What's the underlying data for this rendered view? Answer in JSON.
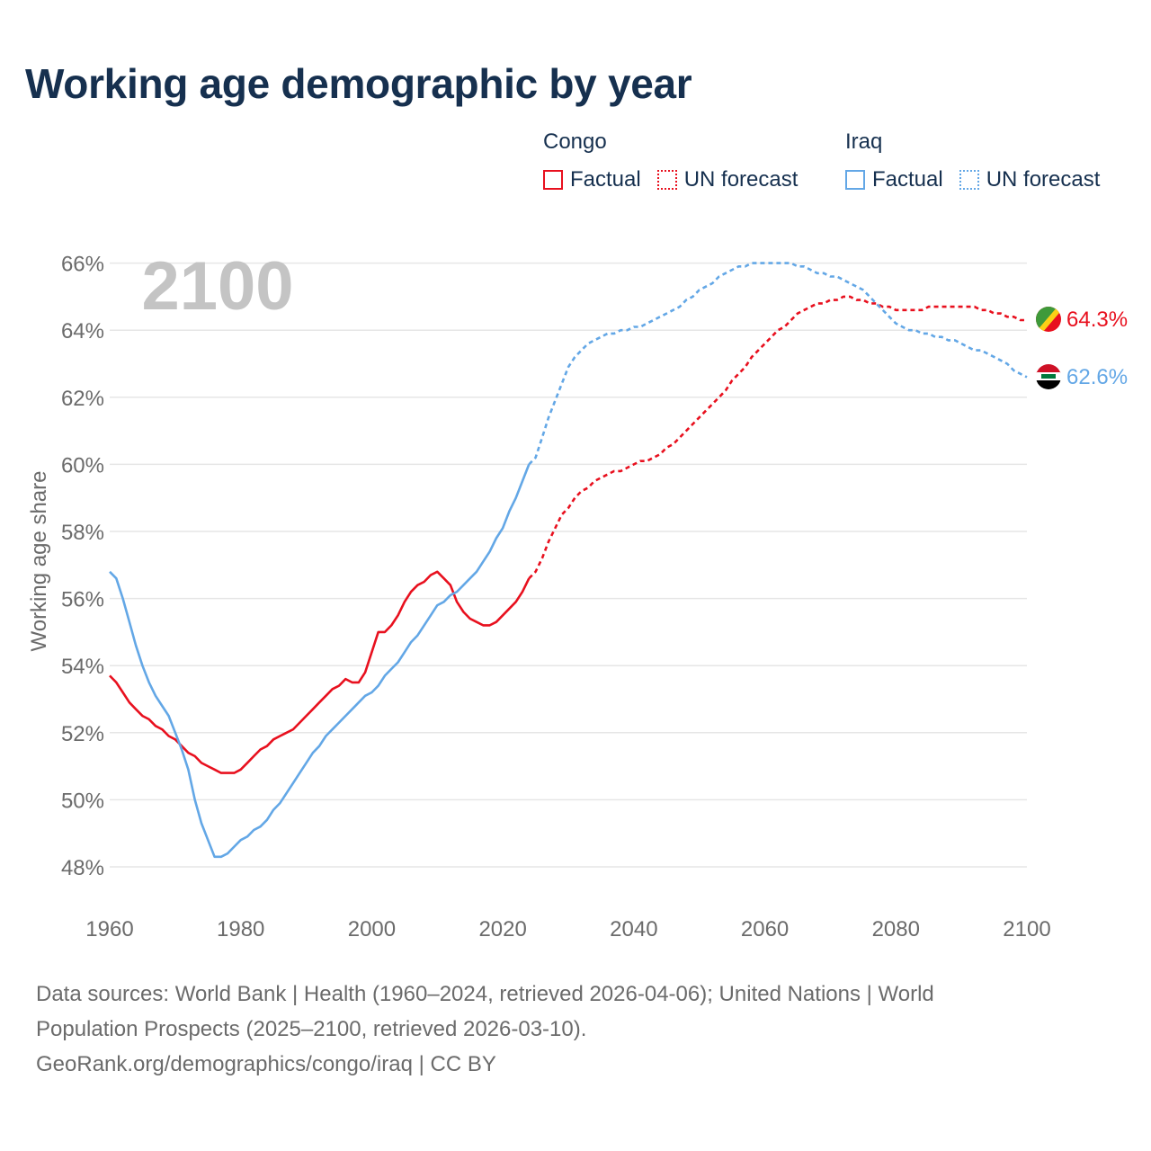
{
  "title": "Working age demographic by year",
  "legend": {
    "groups": [
      {
        "name": "Congo",
        "color": "#e8101e",
        "items": [
          {
            "label": "Factual",
            "style": "solid"
          },
          {
            "label": "UN forecast",
            "style": "dotted"
          }
        ]
      },
      {
        "name": "Iraq",
        "color": "#63a7e6",
        "items": [
          {
            "label": "Factual",
            "style": "solid"
          },
          {
            "label": "UN forecast",
            "style": "dotted"
          }
        ]
      }
    ]
  },
  "year_watermark": "2100",
  "end_labels": {
    "congo": "64.3%",
    "iraq": "62.6%"
  },
  "footer": {
    "line1": "Data sources: World Bank | Health (1960–2024, retrieved 2026-04-06); United Nations | World",
    "line2": "Population Prospects (2025–2100, retrieved 2026-03-10).",
    "line3": "GeoRank.org/demographics/congo/iraq | CC BY"
  },
  "chart_data": {
    "type": "line",
    "title": "Working age demographic by year",
    "xlabel": "",
    "ylabel": "Working age share",
    "xlim": [
      1960,
      2100
    ],
    "ylim": [
      47,
      67
    ],
    "x_ticks": [
      1960,
      1980,
      2000,
      2020,
      2040,
      2060,
      2080,
      2100
    ],
    "y_ticks": [
      48,
      50,
      52,
      54,
      56,
      58,
      60,
      62,
      64,
      66
    ],
    "y_tick_labels": [
      "48%",
      "50%",
      "52%",
      "54%",
      "56%",
      "58%",
      "60%",
      "62%",
      "64%",
      "66%"
    ],
    "x_tick_labels": [
      "1960",
      "1980",
      "2000",
      "2020",
      "2040",
      "2060",
      "2080",
      "2100"
    ],
    "grid": true,
    "factual_end_year": 2024,
    "series": [
      {
        "name": "Congo",
        "color": "#e8101e",
        "points": [
          [
            1960,
            53.7
          ],
          [
            1961,
            53.5
          ],
          [
            1962,
            53.2
          ],
          [
            1963,
            52.9
          ],
          [
            1964,
            52.7
          ],
          [
            1965,
            52.5
          ],
          [
            1966,
            52.4
          ],
          [
            1967,
            52.2
          ],
          [
            1968,
            52.1
          ],
          [
            1969,
            51.9
          ],
          [
            1970,
            51.8
          ],
          [
            1971,
            51.6
          ],
          [
            1972,
            51.4
          ],
          [
            1973,
            51.3
          ],
          [
            1974,
            51.1
          ],
          [
            1975,
            51.0
          ],
          [
            1976,
            50.9
          ],
          [
            1977,
            50.8
          ],
          [
            1978,
            50.8
          ],
          [
            1979,
            50.8
          ],
          [
            1980,
            50.9
          ],
          [
            1981,
            51.1
          ],
          [
            1982,
            51.3
          ],
          [
            1983,
            51.5
          ],
          [
            1984,
            51.6
          ],
          [
            1985,
            51.8
          ],
          [
            1986,
            51.9
          ],
          [
            1987,
            52.0
          ],
          [
            1988,
            52.1
          ],
          [
            1989,
            52.3
          ],
          [
            1990,
            52.5
          ],
          [
            1991,
            52.7
          ],
          [
            1992,
            52.9
          ],
          [
            1993,
            53.1
          ],
          [
            1994,
            53.3
          ],
          [
            1995,
            53.4
          ],
          [
            1996,
            53.6
          ],
          [
            1997,
            53.5
          ],
          [
            1998,
            53.5
          ],
          [
            1999,
            53.8
          ],
          [
            2000,
            54.4
          ],
          [
            2001,
            55.0
          ],
          [
            2002,
            55.0
          ],
          [
            2003,
            55.2
          ],
          [
            2004,
            55.5
          ],
          [
            2005,
            55.9
          ],
          [
            2006,
            56.2
          ],
          [
            2007,
            56.4
          ],
          [
            2008,
            56.5
          ],
          [
            2009,
            56.7
          ],
          [
            2010,
            56.8
          ],
          [
            2011,
            56.6
          ],
          [
            2012,
            56.4
          ],
          [
            2013,
            55.9
          ],
          [
            2014,
            55.6
          ],
          [
            2015,
            55.4
          ],
          [
            2016,
            55.3
          ],
          [
            2017,
            55.2
          ],
          [
            2018,
            55.2
          ],
          [
            2019,
            55.3
          ],
          [
            2020,
            55.5
          ],
          [
            2021,
            55.7
          ],
          [
            2022,
            55.9
          ],
          [
            2023,
            56.2
          ],
          [
            2024,
            56.6
          ],
          [
            2025,
            56.8
          ],
          [
            2026,
            57.2
          ],
          [
            2027,
            57.7
          ],
          [
            2028,
            58.1
          ],
          [
            2029,
            58.5
          ],
          [
            2030,
            58.7
          ],
          [
            2031,
            59.0
          ],
          [
            2032,
            59.2
          ],
          [
            2033,
            59.3
          ],
          [
            2034,
            59.5
          ],
          [
            2035,
            59.6
          ],
          [
            2036,
            59.7
          ],
          [
            2037,
            59.8
          ],
          [
            2038,
            59.8
          ],
          [
            2039,
            59.9
          ],
          [
            2040,
            60.0
          ],
          [
            2041,
            60.1
          ],
          [
            2042,
            60.1
          ],
          [
            2043,
            60.2
          ],
          [
            2044,
            60.3
          ],
          [
            2045,
            60.5
          ],
          [
            2046,
            60.6
          ],
          [
            2047,
            60.8
          ],
          [
            2048,
            61.0
          ],
          [
            2049,
            61.2
          ],
          [
            2050,
            61.4
          ],
          [
            2051,
            61.6
          ],
          [
            2052,
            61.8
          ],
          [
            2053,
            62.0
          ],
          [
            2054,
            62.2
          ],
          [
            2055,
            62.5
          ],
          [
            2056,
            62.7
          ],
          [
            2057,
            62.9
          ],
          [
            2058,
            63.2
          ],
          [
            2059,
            63.4
          ],
          [
            2060,
            63.6
          ],
          [
            2061,
            63.8
          ],
          [
            2062,
            64.0
          ],
          [
            2063,
            64.1
          ],
          [
            2064,
            64.3
          ],
          [
            2065,
            64.5
          ],
          [
            2066,
            64.6
          ],
          [
            2067,
            64.7
          ],
          [
            2068,
            64.8
          ],
          [
            2069,
            64.8
          ],
          [
            2070,
            64.9
          ],
          [
            2071,
            64.9
          ],
          [
            2072,
            65.0
          ],
          [
            2073,
            65.0
          ],
          [
            2074,
            64.9
          ],
          [
            2075,
            64.9
          ],
          [
            2076,
            64.8
          ],
          [
            2077,
            64.8
          ],
          [
            2078,
            64.7
          ],
          [
            2079,
            64.7
          ],
          [
            2080,
            64.6
          ],
          [
            2081,
            64.6
          ],
          [
            2082,
            64.6
          ],
          [
            2083,
            64.6
          ],
          [
            2084,
            64.6
          ],
          [
            2085,
            64.7
          ],
          [
            2086,
            64.7
          ],
          [
            2087,
            64.7
          ],
          [
            2088,
            64.7
          ],
          [
            2089,
            64.7
          ],
          [
            2090,
            64.7
          ],
          [
            2091,
            64.7
          ],
          [
            2092,
            64.7
          ],
          [
            2093,
            64.6
          ],
          [
            2094,
            64.6
          ],
          [
            2095,
            64.5
          ],
          [
            2096,
            64.5
          ],
          [
            2097,
            64.4
          ],
          [
            2098,
            64.4
          ],
          [
            2099,
            64.3
          ],
          [
            2100,
            64.3
          ]
        ]
      },
      {
        "name": "Iraq",
        "color": "#63a7e6",
        "points": [
          [
            1960,
            56.8
          ],
          [
            1961,
            56.6
          ],
          [
            1962,
            56.0
          ],
          [
            1963,
            55.3
          ],
          [
            1964,
            54.6
          ],
          [
            1965,
            54.0
          ],
          [
            1966,
            53.5
          ],
          [
            1967,
            53.1
          ],
          [
            1968,
            52.8
          ],
          [
            1969,
            52.5
          ],
          [
            1970,
            52.0
          ],
          [
            1971,
            51.5
          ],
          [
            1972,
            50.9
          ],
          [
            1973,
            50.0
          ],
          [
            1974,
            49.3
          ],
          [
            1975,
            48.8
          ],
          [
            1976,
            48.3
          ],
          [
            1977,
            48.3
          ],
          [
            1978,
            48.4
          ],
          [
            1979,
            48.6
          ],
          [
            1980,
            48.8
          ],
          [
            1981,
            48.9
          ],
          [
            1982,
            49.1
          ],
          [
            1983,
            49.2
          ],
          [
            1984,
            49.4
          ],
          [
            1985,
            49.7
          ],
          [
            1986,
            49.9
          ],
          [
            1987,
            50.2
          ],
          [
            1988,
            50.5
          ],
          [
            1989,
            50.8
          ],
          [
            1990,
            51.1
          ],
          [
            1991,
            51.4
          ],
          [
            1992,
            51.6
          ],
          [
            1993,
            51.9
          ],
          [
            1994,
            52.1
          ],
          [
            1995,
            52.3
          ],
          [
            1996,
            52.5
          ],
          [
            1997,
            52.7
          ],
          [
            1998,
            52.9
          ],
          [
            1999,
            53.1
          ],
          [
            2000,
            53.2
          ],
          [
            2001,
            53.4
          ],
          [
            2002,
            53.7
          ],
          [
            2003,
            53.9
          ],
          [
            2004,
            54.1
          ],
          [
            2005,
            54.4
          ],
          [
            2006,
            54.7
          ],
          [
            2007,
            54.9
          ],
          [
            2008,
            55.2
          ],
          [
            2009,
            55.5
          ],
          [
            2010,
            55.8
          ],
          [
            2011,
            55.9
          ],
          [
            2012,
            56.1
          ],
          [
            2013,
            56.2
          ],
          [
            2014,
            56.4
          ],
          [
            2015,
            56.6
          ],
          [
            2016,
            56.8
          ],
          [
            2017,
            57.1
          ],
          [
            2018,
            57.4
          ],
          [
            2019,
            57.8
          ],
          [
            2020,
            58.1
          ],
          [
            2021,
            58.6
          ],
          [
            2022,
            59.0
          ],
          [
            2023,
            59.5
          ],
          [
            2024,
            60.0
          ],
          [
            2025,
            60.2
          ],
          [
            2026,
            60.8
          ],
          [
            2027,
            61.4
          ],
          [
            2028,
            61.9
          ],
          [
            2029,
            62.4
          ],
          [
            2030,
            62.9
          ],
          [
            2031,
            63.2
          ],
          [
            2032,
            63.4
          ],
          [
            2033,
            63.6
          ],
          [
            2034,
            63.7
          ],
          [
            2035,
            63.8
          ],
          [
            2036,
            63.9
          ],
          [
            2037,
            63.9
          ],
          [
            2038,
            64.0
          ],
          [
            2039,
            64.0
          ],
          [
            2040,
            64.1
          ],
          [
            2041,
            64.1
          ],
          [
            2042,
            64.2
          ],
          [
            2043,
            64.3
          ],
          [
            2044,
            64.4
          ],
          [
            2045,
            64.5
          ],
          [
            2046,
            64.6
          ],
          [
            2047,
            64.7
          ],
          [
            2048,
            64.9
          ],
          [
            2049,
            65.0
          ],
          [
            2050,
            65.2
          ],
          [
            2051,
            65.3
          ],
          [
            2052,
            65.4
          ],
          [
            2053,
            65.6
          ],
          [
            2054,
            65.7
          ],
          [
            2055,
            65.8
          ],
          [
            2056,
            65.9
          ],
          [
            2057,
            65.9
          ],
          [
            2058,
            66.0
          ],
          [
            2059,
            66.0
          ],
          [
            2060,
            66.0
          ],
          [
            2061,
            66.0
          ],
          [
            2062,
            66.0
          ],
          [
            2063,
            66.0
          ],
          [
            2064,
            66.0
          ],
          [
            2065,
            65.9
          ],
          [
            2066,
            65.9
          ],
          [
            2067,
            65.8
          ],
          [
            2068,
            65.7
          ],
          [
            2069,
            65.7
          ],
          [
            2070,
            65.6
          ],
          [
            2071,
            65.6
          ],
          [
            2072,
            65.5
          ],
          [
            2073,
            65.4
          ],
          [
            2074,
            65.3
          ],
          [
            2075,
            65.2
          ],
          [
            2076,
            65.0
          ],
          [
            2077,
            64.8
          ],
          [
            2078,
            64.6
          ],
          [
            2079,
            64.4
          ],
          [
            2080,
            64.2
          ],
          [
            2081,
            64.1
          ],
          [
            2082,
            64.0
          ],
          [
            2083,
            64.0
          ],
          [
            2084,
            63.9
          ],
          [
            2085,
            63.9
          ],
          [
            2086,
            63.8
          ],
          [
            2087,
            63.8
          ],
          [
            2088,
            63.7
          ],
          [
            2089,
            63.7
          ],
          [
            2090,
            63.6
          ],
          [
            2091,
            63.5
          ],
          [
            2092,
            63.4
          ],
          [
            2093,
            63.4
          ],
          [
            2094,
            63.3
          ],
          [
            2095,
            63.2
          ],
          [
            2096,
            63.1
          ],
          [
            2097,
            63.0
          ],
          [
            2098,
            62.8
          ],
          [
            2099,
            62.7
          ],
          [
            2100,
            62.6
          ]
        ]
      }
    ]
  }
}
